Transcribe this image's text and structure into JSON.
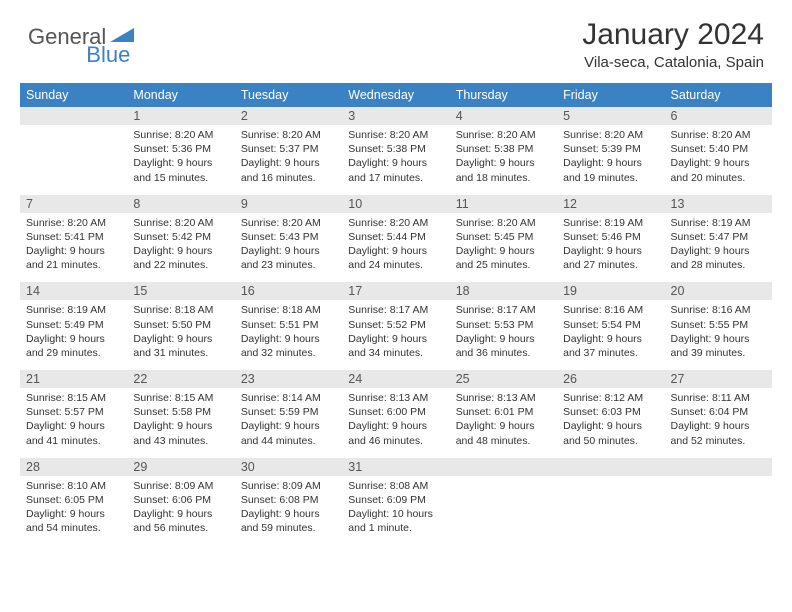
{
  "logo": {
    "part1": "General",
    "part2": "Blue"
  },
  "title": "January 2024",
  "location": "Vila-seca, Catalonia, Spain",
  "colors": {
    "header_bg": "#3b82c4",
    "header_text": "#ffffff",
    "daynum_bg": "#e8e8e8",
    "rule": "#3b82c4",
    "text": "#333333"
  },
  "days_of_week": [
    "Sunday",
    "Monday",
    "Tuesday",
    "Wednesday",
    "Thursday",
    "Friday",
    "Saturday"
  ],
  "weeks": [
    [
      null,
      {
        "n": "1",
        "sr": "8:20 AM",
        "ss": "5:36 PM",
        "dl": "9 hours and 15 minutes."
      },
      {
        "n": "2",
        "sr": "8:20 AM",
        "ss": "5:37 PM",
        "dl": "9 hours and 16 minutes."
      },
      {
        "n": "3",
        "sr": "8:20 AM",
        "ss": "5:38 PM",
        "dl": "9 hours and 17 minutes."
      },
      {
        "n": "4",
        "sr": "8:20 AM",
        "ss": "5:38 PM",
        "dl": "9 hours and 18 minutes."
      },
      {
        "n": "5",
        "sr": "8:20 AM",
        "ss": "5:39 PM",
        "dl": "9 hours and 19 minutes."
      },
      {
        "n": "6",
        "sr": "8:20 AM",
        "ss": "5:40 PM",
        "dl": "9 hours and 20 minutes."
      }
    ],
    [
      {
        "n": "7",
        "sr": "8:20 AM",
        "ss": "5:41 PM",
        "dl": "9 hours and 21 minutes."
      },
      {
        "n": "8",
        "sr": "8:20 AM",
        "ss": "5:42 PM",
        "dl": "9 hours and 22 minutes."
      },
      {
        "n": "9",
        "sr": "8:20 AM",
        "ss": "5:43 PM",
        "dl": "9 hours and 23 minutes."
      },
      {
        "n": "10",
        "sr": "8:20 AM",
        "ss": "5:44 PM",
        "dl": "9 hours and 24 minutes."
      },
      {
        "n": "11",
        "sr": "8:20 AM",
        "ss": "5:45 PM",
        "dl": "9 hours and 25 minutes."
      },
      {
        "n": "12",
        "sr": "8:19 AM",
        "ss": "5:46 PM",
        "dl": "9 hours and 27 minutes."
      },
      {
        "n": "13",
        "sr": "8:19 AM",
        "ss": "5:47 PM",
        "dl": "9 hours and 28 minutes."
      }
    ],
    [
      {
        "n": "14",
        "sr": "8:19 AM",
        "ss": "5:49 PM",
        "dl": "9 hours and 29 minutes."
      },
      {
        "n": "15",
        "sr": "8:18 AM",
        "ss": "5:50 PM",
        "dl": "9 hours and 31 minutes."
      },
      {
        "n": "16",
        "sr": "8:18 AM",
        "ss": "5:51 PM",
        "dl": "9 hours and 32 minutes."
      },
      {
        "n": "17",
        "sr": "8:17 AM",
        "ss": "5:52 PM",
        "dl": "9 hours and 34 minutes."
      },
      {
        "n": "18",
        "sr": "8:17 AM",
        "ss": "5:53 PM",
        "dl": "9 hours and 36 minutes."
      },
      {
        "n": "19",
        "sr": "8:16 AM",
        "ss": "5:54 PM",
        "dl": "9 hours and 37 minutes."
      },
      {
        "n": "20",
        "sr": "8:16 AM",
        "ss": "5:55 PM",
        "dl": "9 hours and 39 minutes."
      }
    ],
    [
      {
        "n": "21",
        "sr": "8:15 AM",
        "ss": "5:57 PM",
        "dl": "9 hours and 41 minutes."
      },
      {
        "n": "22",
        "sr": "8:15 AM",
        "ss": "5:58 PM",
        "dl": "9 hours and 43 minutes."
      },
      {
        "n": "23",
        "sr": "8:14 AM",
        "ss": "5:59 PM",
        "dl": "9 hours and 44 minutes."
      },
      {
        "n": "24",
        "sr": "8:13 AM",
        "ss": "6:00 PM",
        "dl": "9 hours and 46 minutes."
      },
      {
        "n": "25",
        "sr": "8:13 AM",
        "ss": "6:01 PM",
        "dl": "9 hours and 48 minutes."
      },
      {
        "n": "26",
        "sr": "8:12 AM",
        "ss": "6:03 PM",
        "dl": "9 hours and 50 minutes."
      },
      {
        "n": "27",
        "sr": "8:11 AM",
        "ss": "6:04 PM",
        "dl": "9 hours and 52 minutes."
      }
    ],
    [
      {
        "n": "28",
        "sr": "8:10 AM",
        "ss": "6:05 PM",
        "dl": "9 hours and 54 minutes."
      },
      {
        "n": "29",
        "sr": "8:09 AM",
        "ss": "6:06 PM",
        "dl": "9 hours and 56 minutes."
      },
      {
        "n": "30",
        "sr": "8:09 AM",
        "ss": "6:08 PM",
        "dl": "9 hours and 59 minutes."
      },
      {
        "n": "31",
        "sr": "8:08 AM",
        "ss": "6:09 PM",
        "dl": "10 hours and 1 minute."
      },
      null,
      null,
      null
    ]
  ],
  "labels": {
    "sunrise": "Sunrise:",
    "sunset": "Sunset:",
    "daylight": "Daylight:"
  }
}
